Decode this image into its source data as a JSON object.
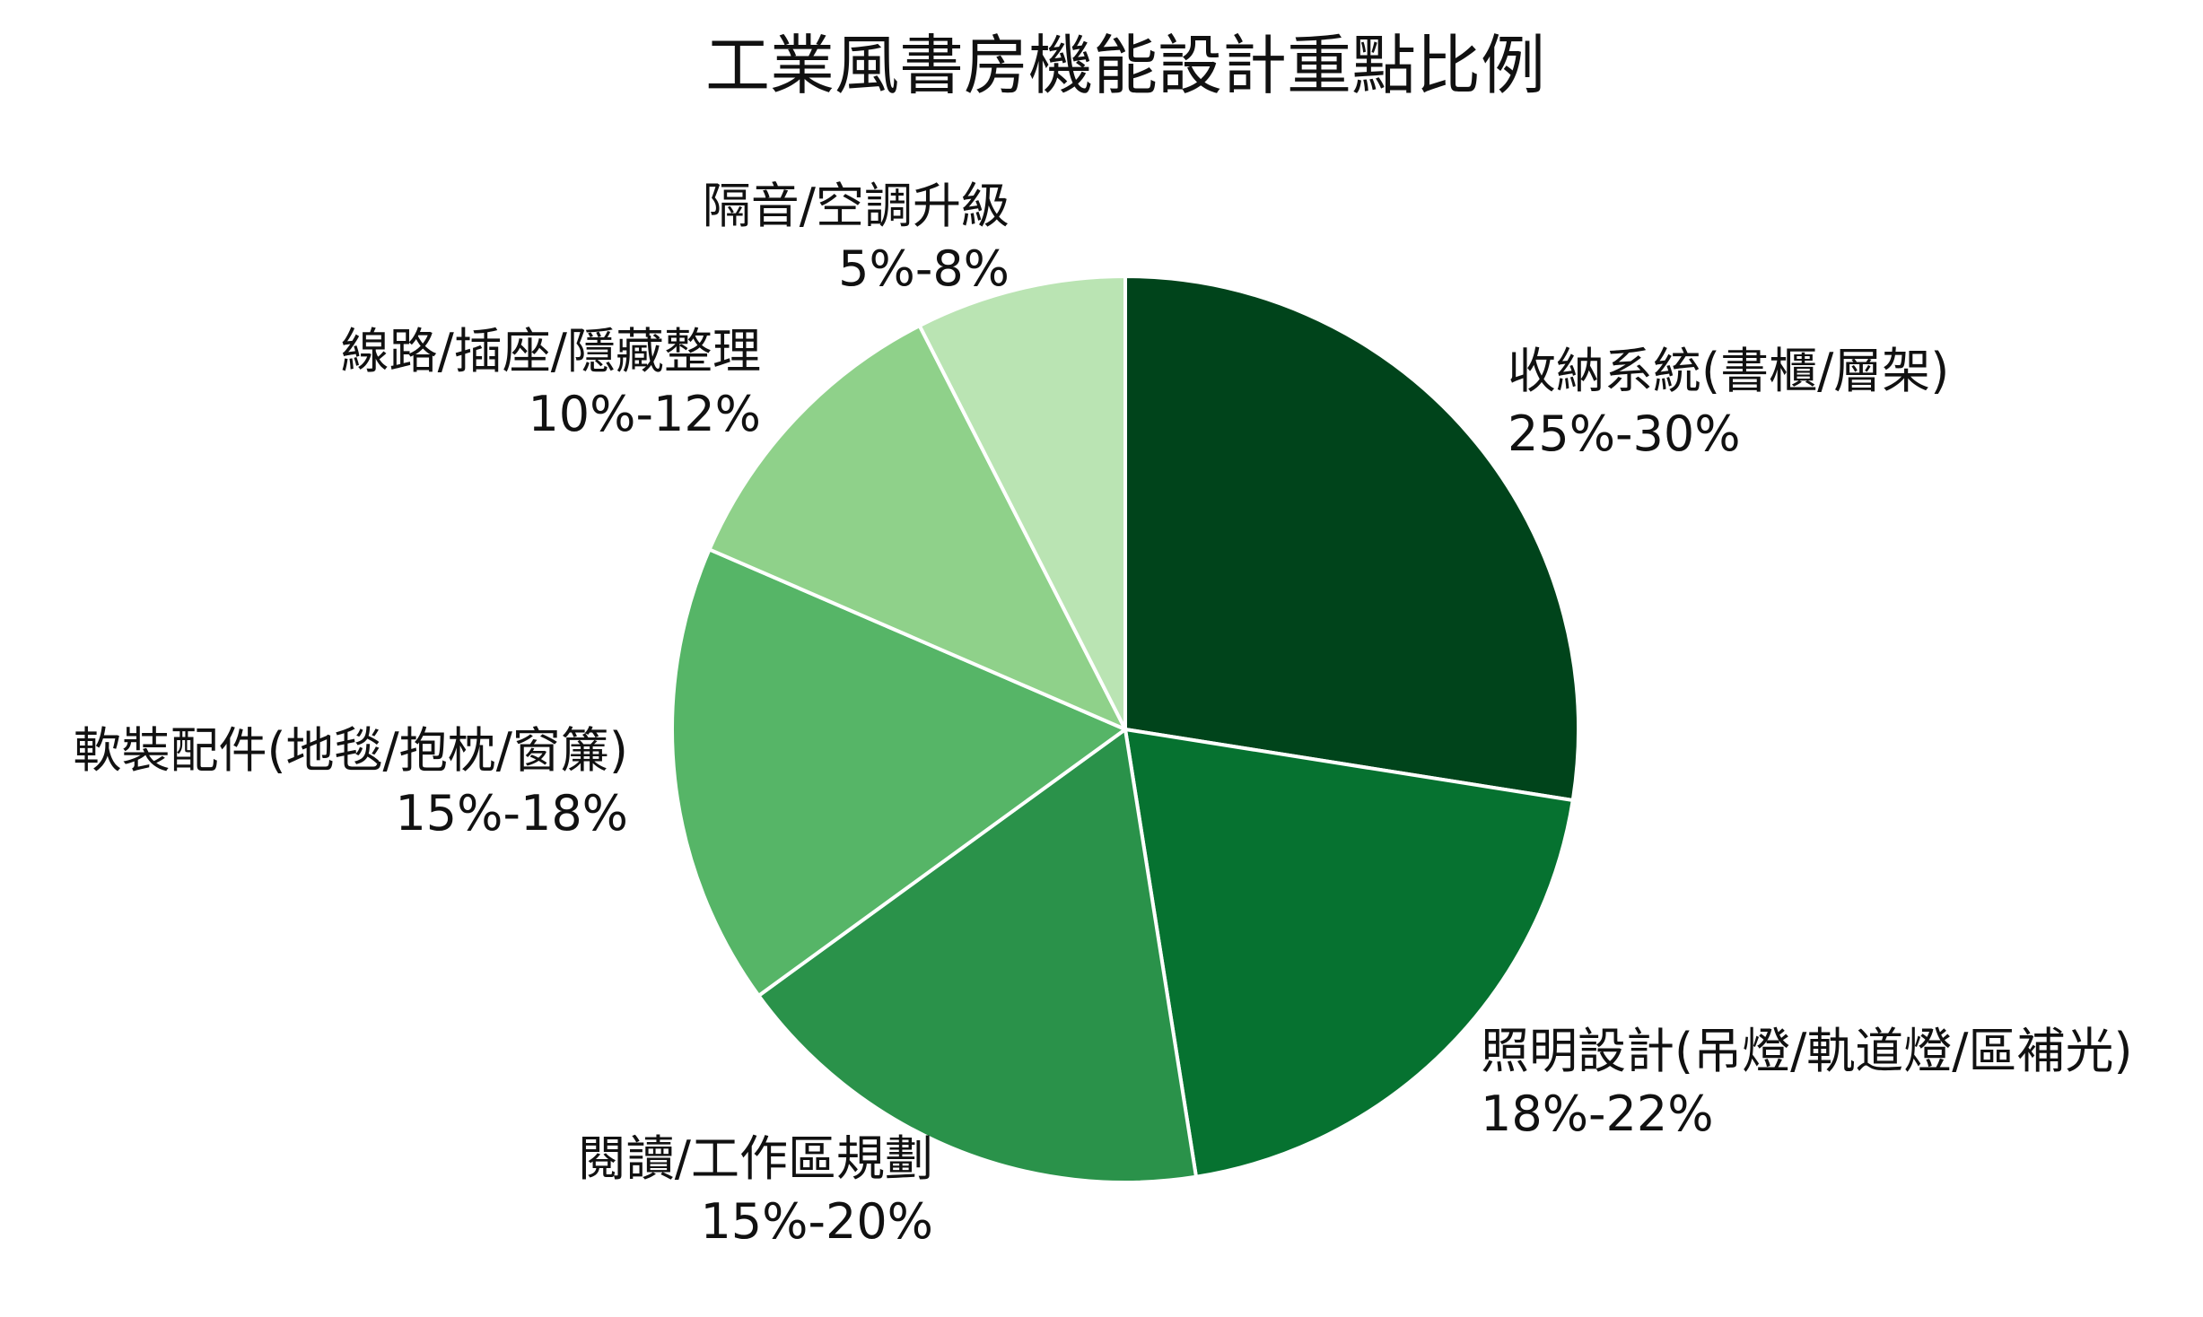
{
  "chart_data": {
    "type": "pie",
    "title": "工業風書房機能設計重點比例",
    "slices": [
      {
        "name": "收納系統(書櫃/層架)",
        "range_label": "25%-30%",
        "value": 27.5,
        "color": "#00441b"
      },
      {
        "name": "照明設計(吊燈/軌道燈/區補光)",
        "range_label": "18%-22%",
        "value": 20,
        "color": "#067230"
      },
      {
        "name": "閱讀/工作區規劃",
        "range_label": "15%-20%",
        "value": 17.5,
        "color": "#2a924a"
      },
      {
        "name": "軟裝配件(地毯/抱枕/窗簾)",
        "range_label": "15%-18%",
        "value": 16.5,
        "color": "#56b567"
      },
      {
        "name": "線路/插座/隱藏整理",
        "range_label": "10%-12%",
        "value": 11,
        "color": "#8fd18a"
      },
      {
        "name": "隔音/空調升級",
        "range_label": "5%-8%",
        "value": 7.5,
        "color": "#bae4b3"
      }
    ],
    "start_angle": "12 o'clock",
    "direction": "clockwise",
    "slice_border_color": "#ffffff",
    "legend": "none"
  }
}
